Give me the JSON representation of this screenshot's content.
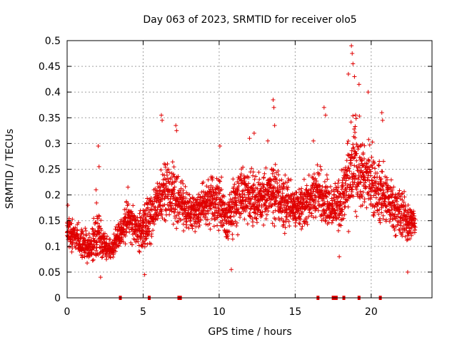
{
  "chart_data": {
    "type": "scatter",
    "title": "Day 063 of 2023, SRMTID for receiver olo5",
    "xlabel": "GPS time / hours",
    "ylabel": "SRMTID / TECUs",
    "xlim": [
      0,
      24
    ],
    "ylim": [
      0,
      0.5
    ],
    "x_ticks": [
      "0",
      "5",
      "10",
      "15",
      "20"
    ],
    "x_tick_values": [
      0,
      5,
      10,
      15,
      20
    ],
    "y_ticks": [
      "0",
      "0.05",
      "0.1",
      "0.15",
      "0.2",
      "0.25",
      "0.3",
      "0.35",
      "0.4",
      "0.45",
      "0.5"
    ],
    "y_tick_values": [
      0,
      0.05,
      0.1,
      0.15,
      0.2,
      0.25,
      0.3,
      0.35,
      0.4,
      0.45,
      0.5
    ],
    "grid": true,
    "marker": "+",
    "color": "#e00000",
    "series": [
      {
        "name": "SRMTID",
        "envelope": {
          "x": [
            0,
            0.5,
            1,
            1.5,
            2,
            2.5,
            3,
            3.5,
            4,
            4.5,
            5,
            5.5,
            6,
            6.5,
            7,
            7.5,
            8,
            8.5,
            9,
            9.5,
            10,
            10.5,
            11,
            11.5,
            12,
            12.5,
            13,
            13.5,
            14,
            14.5,
            15,
            15.5,
            16,
            16.5,
            17,
            17.5,
            18,
            18.5,
            19,
            19.5,
            20,
            20.5,
            21,
            21.5,
            22,
            22.5,
            23
          ],
          "y_low": [
            0.09,
            0.08,
            0.06,
            0.06,
            0.06,
            0.06,
            0.07,
            0.09,
            0.1,
            0.09,
            0.07,
            0.1,
            0.12,
            0.13,
            0.13,
            0.12,
            0.12,
            0.12,
            0.12,
            0.12,
            0.12,
            0.09,
            0.1,
            0.12,
            0.13,
            0.13,
            0.13,
            0.12,
            0.12,
            0.11,
            0.12,
            0.12,
            0.13,
            0.13,
            0.13,
            0.12,
            0.11,
            0.12,
            0.13,
            0.14,
            0.13,
            0.12,
            0.12,
            0.1,
            0.1,
            0.09,
            0.12
          ],
          "y_high": [
            0.17,
            0.16,
            0.15,
            0.13,
            0.2,
            0.13,
            0.12,
            0.17,
            0.21,
            0.18,
            0.19,
            0.22,
            0.25,
            0.3,
            0.27,
            0.24,
            0.22,
            0.22,
            0.24,
            0.25,
            0.26,
            0.22,
            0.25,
            0.28,
            0.27,
            0.25,
            0.27,
            0.29,
            0.26,
            0.25,
            0.24,
            0.23,
            0.26,
            0.28,
            0.25,
            0.24,
            0.27,
            0.34,
            0.39,
            0.33,
            0.33,
            0.28,
            0.27,
            0.25,
            0.23,
            0.2,
            0.18
          ],
          "x_end": 22.9
        },
        "spikes": [
          {
            "x": 0.05,
            "y": 0.18
          },
          {
            "x": 1.9,
            "y": 0.21
          },
          {
            "x": 2.05,
            "y": 0.295
          },
          {
            "x": 2.1,
            "y": 0.255
          },
          {
            "x": 2.2,
            "y": 0.04
          },
          {
            "x": 4.0,
            "y": 0.215
          },
          {
            "x": 5.1,
            "y": 0.045
          },
          {
            "x": 6.2,
            "y": 0.355
          },
          {
            "x": 6.25,
            "y": 0.345
          },
          {
            "x": 7.15,
            "y": 0.335
          },
          {
            "x": 7.2,
            "y": 0.325
          },
          {
            "x": 10.05,
            "y": 0.295
          },
          {
            "x": 10.8,
            "y": 0.055
          },
          {
            "x": 12.0,
            "y": 0.31
          },
          {
            "x": 12.3,
            "y": 0.32
          },
          {
            "x": 13.2,
            "y": 0.305
          },
          {
            "x": 13.55,
            "y": 0.385
          },
          {
            "x": 13.6,
            "y": 0.37
          },
          {
            "x": 13.65,
            "y": 0.335
          },
          {
            "x": 16.2,
            "y": 0.305
          },
          {
            "x": 16.9,
            "y": 0.37
          },
          {
            "x": 17.0,
            "y": 0.355
          },
          {
            "x": 17.9,
            "y": 0.08
          },
          {
            "x": 18.5,
            "y": 0.435
          },
          {
            "x": 18.7,
            "y": 0.49
          },
          {
            "x": 18.75,
            "y": 0.475
          },
          {
            "x": 18.8,
            "y": 0.455
          },
          {
            "x": 18.9,
            "y": 0.43
          },
          {
            "x": 19.2,
            "y": 0.415
          },
          {
            "x": 19.8,
            "y": 0.4
          },
          {
            "x": 20.7,
            "y": 0.36
          },
          {
            "x": 20.75,
            "y": 0.345
          },
          {
            "x": 22.4,
            "y": 0.05
          }
        ],
        "zero_markers_x": [
          3.5,
          5.4,
          7.35,
          7.45,
          16.5,
          17.5,
          17.6,
          17.7,
          18.2,
          19.2,
          20.6
        ]
      }
    ]
  }
}
